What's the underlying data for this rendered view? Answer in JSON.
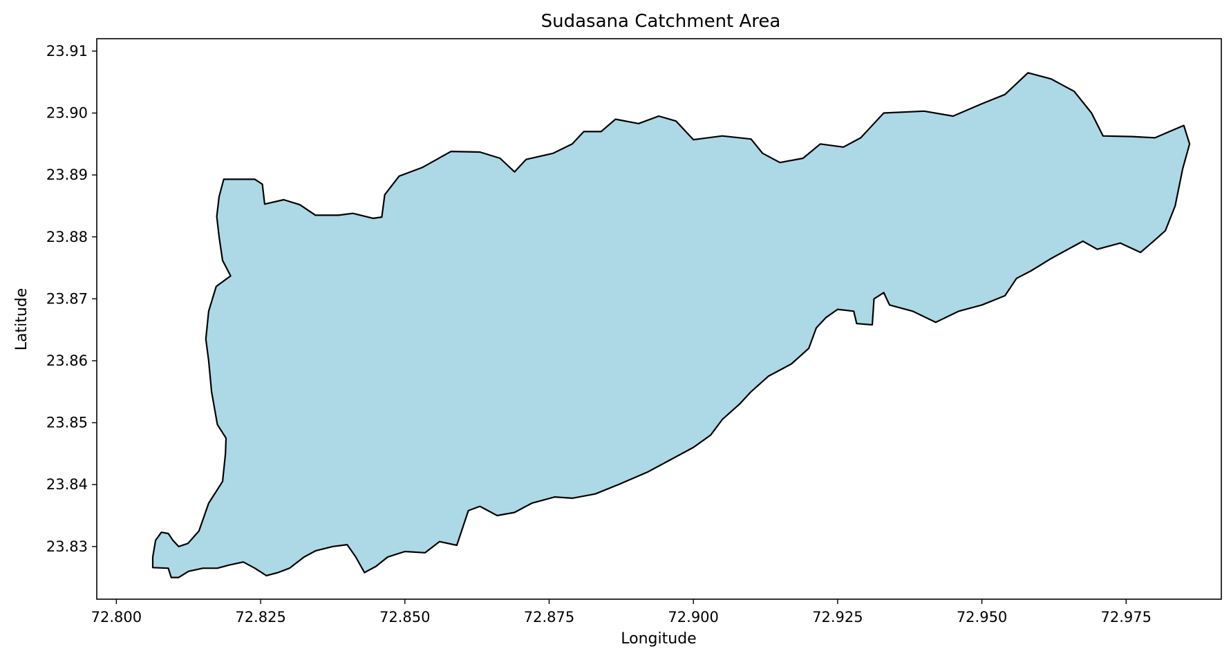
{
  "chart_data": {
    "type": "map",
    "title": "Sudasana Catchment Area",
    "xlabel": "Longitude",
    "ylabel": "Latitude",
    "xlim": [
      72.7966,
      72.9915
    ],
    "ylim": [
      23.8215,
      23.912
    ],
    "x_ticks": [
      72.8,
      72.825,
      72.85,
      72.875,
      72.9,
      72.925,
      72.95,
      72.975
    ],
    "x_tick_labels": [
      "72.800",
      "72.825",
      "72.850",
      "72.875",
      "72.900",
      "72.925",
      "72.950",
      "72.975"
    ],
    "y_ticks": [
      23.83,
      23.84,
      23.85,
      23.86,
      23.87,
      23.88,
      23.89,
      23.9,
      23.91
    ],
    "y_tick_labels": [
      "23.83",
      "23.84",
      "23.85",
      "23.86",
      "23.87",
      "23.88",
      "23.89",
      "23.90",
      "23.91"
    ],
    "grid": false,
    "legend": "none",
    "fill_color": "#add8e6",
    "edge_color": "#000000",
    "boundary": [
      [
        72.8063,
        23.8266
      ],
      [
        72.8063,
        23.8283
      ],
      [
        72.8068,
        23.831
      ],
      [
        72.8078,
        23.8323
      ],
      [
        72.809,
        23.8321
      ],
      [
        72.8098,
        23.831
      ],
      [
        72.8108,
        23.83
      ],
      [
        72.8124,
        23.8305
      ],
      [
        72.8143,
        23.8325
      ],
      [
        72.816,
        23.837
      ],
      [
        72.8184,
        23.8405
      ],
      [
        72.8189,
        23.845
      ],
      [
        72.819,
        23.8475
      ],
      [
        72.8175,
        23.8497
      ],
      [
        72.8165,
        23.855
      ],
      [
        72.816,
        23.86
      ],
      [
        72.8155,
        23.8635
      ],
      [
        72.816,
        23.868
      ],
      [
        72.8173,
        23.872
      ],
      [
        72.8198,
        23.8737
      ],
      [
        72.8184,
        23.8762
      ],
      [
        72.8178,
        23.88
      ],
      [
        72.8174,
        23.8833
      ],
      [
        72.8178,
        23.8865
      ],
      [
        72.8186,
        23.8893
      ],
      [
        72.824,
        23.8893
      ],
      [
        72.8253,
        23.8885
      ],
      [
        72.8257,
        23.8853
      ],
      [
        72.829,
        23.886
      ],
      [
        72.8318,
        23.8852
      ],
      [
        72.8345,
        23.8835
      ],
      [
        72.8385,
        23.8835
      ],
      [
        72.841,
        23.8838
      ],
      [
        72.8445,
        23.883
      ],
      [
        72.846,
        23.8832
      ],
      [
        72.8465,
        23.8868
      ],
      [
        72.849,
        23.8898
      ],
      [
        72.853,
        23.8912
      ],
      [
        72.858,
        23.8938
      ],
      [
        72.863,
        23.8937
      ],
      [
        72.8665,
        23.8927
      ],
      [
        72.869,
        23.8905
      ],
      [
        72.871,
        23.8925
      ],
      [
        72.8757,
        23.8935
      ],
      [
        72.879,
        23.895
      ],
      [
        72.881,
        23.897
      ],
      [
        72.884,
        23.897
      ],
      [
        72.8865,
        23.899
      ],
      [
        72.8905,
        23.8983
      ],
      [
        72.894,
        23.8995
      ],
      [
        72.897,
        23.8987
      ],
      [
        72.9,
        23.8957
      ],
      [
        72.905,
        23.8963
      ],
      [
        72.91,
        23.8958
      ],
      [
        72.912,
        23.8935
      ],
      [
        72.915,
        23.892
      ],
      [
        72.919,
        23.8927
      ],
      [
        72.922,
        23.895
      ],
      [
        72.926,
        23.8945
      ],
      [
        72.929,
        23.896
      ],
      [
        72.933,
        23.9
      ],
      [
        72.94,
        23.9003
      ],
      [
        72.945,
        23.8995
      ],
      [
        72.95,
        23.9015
      ],
      [
        72.954,
        23.903
      ],
      [
        72.958,
        23.9065
      ],
      [
        72.962,
        23.9055
      ],
      [
        72.966,
        23.9035
      ],
      [
        72.969,
        23.9
      ],
      [
        72.971,
        23.8963
      ],
      [
        72.976,
        23.8962
      ],
      [
        72.98,
        23.896
      ],
      [
        72.9825,
        23.897
      ],
      [
        72.985,
        23.898
      ],
      [
        72.986,
        23.895
      ],
      [
        72.9848,
        23.891
      ],
      [
        72.9835,
        23.885
      ],
      [
        72.9818,
        23.881
      ],
      [
        72.98,
        23.8795
      ],
      [
        72.9775,
        23.8775
      ],
      [
        72.974,
        23.879
      ],
      [
        72.97,
        23.878
      ],
      [
        72.9675,
        23.8793
      ],
      [
        72.962,
        23.8765
      ],
      [
        72.9585,
        23.8745
      ],
      [
        72.956,
        23.8733
      ],
      [
        72.954,
        23.8705
      ],
      [
        72.95,
        23.869
      ],
      [
        72.946,
        23.868
      ],
      [
        72.942,
        23.8662
      ],
      [
        72.938,
        23.868
      ],
      [
        72.934,
        23.869
      ],
      [
        72.933,
        23.871
      ],
      [
        72.9313,
        23.87
      ],
      [
        72.931,
        23.8658
      ],
      [
        72.9283,
        23.866
      ],
      [
        72.9278,
        23.868
      ],
      [
        72.925,
        23.8683
      ],
      [
        72.923,
        23.867
      ],
      [
        72.9213,
        23.8653
      ],
      [
        72.92,
        23.862
      ],
      [
        72.917,
        23.8595
      ],
      [
        72.913,
        23.8575
      ],
      [
        72.91,
        23.855
      ],
      [
        72.908,
        23.853
      ],
      [
        72.905,
        23.8505
      ],
      [
        72.903,
        23.848
      ],
      [
        72.9,
        23.846
      ],
      [
        72.896,
        23.844
      ],
      [
        72.892,
        23.842
      ],
      [
        72.887,
        23.84
      ],
      [
        72.883,
        23.8385
      ],
      [
        72.879,
        23.8378
      ],
      [
        72.876,
        23.838
      ],
      [
        72.872,
        23.837
      ],
      [
        72.869,
        23.8355
      ],
      [
        72.866,
        23.835
      ],
      [
        72.863,
        23.8365
      ],
      [
        72.861,
        23.8358
      ],
      [
        72.86,
        23.833
      ],
      [
        72.859,
        23.8302
      ],
      [
        72.856,
        23.8308
      ],
      [
        72.8535,
        23.829
      ],
      [
        72.85,
        23.8292
      ],
      [
        72.847,
        23.8283
      ],
      [
        72.845,
        23.8268
      ],
      [
        72.843,
        23.8258
      ],
      [
        72.8415,
        23.8283
      ],
      [
        72.84,
        23.8303
      ],
      [
        72.8375,
        23.83
      ],
      [
        72.8345,
        23.8293
      ],
      [
        72.8325,
        23.8283
      ],
      [
        72.83,
        23.8265
      ],
      [
        72.828,
        23.8258
      ],
      [
        72.826,
        23.8253
      ],
      [
        72.824,
        23.8265
      ],
      [
        72.822,
        23.8275
      ],
      [
        72.8195,
        23.827
      ],
      [
        72.8175,
        23.8265
      ],
      [
        72.815,
        23.8265
      ],
      [
        72.8125,
        23.826
      ],
      [
        72.8108,
        23.825
      ],
      [
        72.8095,
        23.825
      ],
      [
        72.809,
        23.8265
      ]
    ]
  }
}
